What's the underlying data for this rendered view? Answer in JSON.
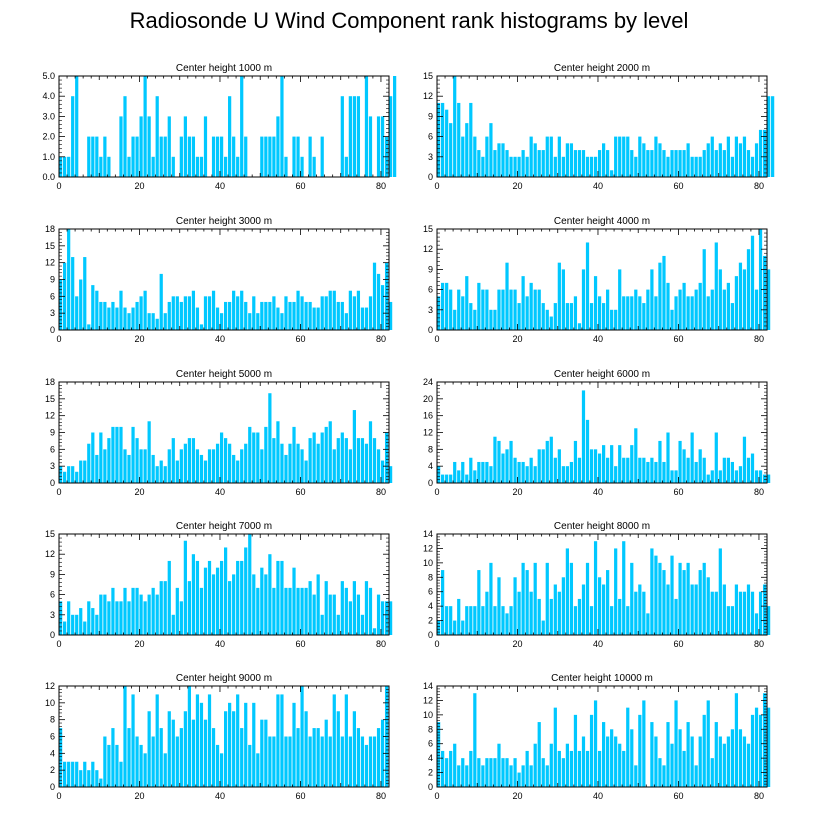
{
  "title": "Radiosonde U Wind Component rank histograms by level",
  "colors": {
    "bar": "#00c8ff",
    "axis": "#000000"
  },
  "chart_data": [
    {
      "type": "bar",
      "title": "Center height 1000 m",
      "xlim": [
        0,
        82
      ],
      "ylim": [
        0,
        5
      ],
      "xticks": [
        0,
        20,
        40,
        60,
        80
      ],
      "xtick_labels": [
        "0",
        "20",
        "40",
        "60",
        "80"
      ],
      "yticks": [
        0,
        1,
        2,
        3,
        4,
        5
      ],
      "ytick_labels": [
        "0.0",
        "1.0",
        "2.0",
        "3.0",
        "4.0",
        "5.0"
      ],
      "values": [
        1,
        1,
        1,
        4,
        5,
        0,
        0,
        2,
        2,
        2,
        1,
        2,
        1,
        0,
        0,
        3,
        4,
        1,
        2,
        2,
        3,
        5,
        3,
        1,
        4,
        2,
        2,
        3,
        1,
        0,
        2,
        3,
        2,
        2,
        1,
        1,
        3,
        0,
        2,
        2,
        2,
        1,
        4,
        2,
        1,
        5,
        2,
        0,
        0,
        0,
        2,
        2,
        2,
        2,
        3,
        5,
        1,
        0,
        2,
        2,
        1,
        0,
        2,
        1,
        0,
        2,
        0,
        0,
        0,
        0,
        4,
        1,
        4,
        4,
        4,
        0,
        5,
        3,
        0,
        3,
        3,
        2,
        4,
        5
      ]
    },
    {
      "type": "bar",
      "title": "Center height 2000 m",
      "xlim": [
        0,
        82
      ],
      "ylim": [
        0,
        15
      ],
      "xticks": [
        0,
        20,
        40,
        60,
        80
      ],
      "xtick_labels": [
        "0",
        "20",
        "40",
        "60",
        "80"
      ],
      "yticks": [
        0,
        3,
        6,
        9,
        12,
        15
      ],
      "ytick_labels": [
        "0",
        "3",
        "6",
        "9",
        "12",
        "15"
      ],
      "values": [
        11,
        11,
        10,
        8,
        15,
        11,
        6,
        8,
        11,
        6,
        4,
        3,
        6,
        8,
        4,
        5,
        5,
        4,
        3,
        3,
        3,
        4,
        3,
        6,
        5,
        4,
        4,
        6,
        6,
        3,
        6,
        3,
        5,
        5,
        4,
        4,
        4,
        3,
        3,
        3,
        4,
        5,
        4,
        1,
        6,
        6,
        6,
        6,
        4,
        3,
        6,
        5,
        4,
        4,
        6,
        5,
        4,
        3,
        4,
        4,
        4,
        4,
        5,
        3,
        3,
        3,
        4,
        5,
        6,
        4,
        5,
        4,
        6,
        3,
        6,
        5,
        6,
        4,
        3,
        5,
        7,
        7,
        12,
        12
      ]
    },
    {
      "type": "bar",
      "title": "Center height 3000 m",
      "xlim": [
        0,
        82
      ],
      "ylim": [
        0,
        18
      ],
      "xticks": [
        0,
        20,
        40,
        60,
        80
      ],
      "xtick_labels": [
        "0",
        "20",
        "40",
        "60",
        "80"
      ],
      "yticks": [
        0,
        3,
        6,
        9,
        12,
        15,
        18
      ],
      "ytick_labels": [
        "0",
        "3",
        "6",
        "9",
        "12",
        "15",
        "18"
      ],
      "values": [
        9,
        12,
        18,
        13,
        6,
        9,
        13,
        1,
        8,
        7,
        5,
        5,
        4,
        5,
        4,
        7,
        4,
        3,
        4,
        5,
        6,
        7,
        3,
        3,
        2,
        10,
        3,
        5,
        6,
        6,
        5,
        6,
        6,
        7,
        4,
        1,
        6,
        6,
        7,
        4,
        3,
        5,
        5,
        7,
        6,
        7,
        5,
        3,
        6,
        3,
        5,
        5,
        5,
        6,
        4,
        3,
        6,
        5,
        5,
        7,
        6,
        5,
        5,
        4,
        4,
        6,
        6,
        7,
        7,
        5,
        5,
        3,
        7,
        6,
        7,
        4,
        4,
        6,
        12,
        10,
        8,
        12,
        5
      ]
    },
    {
      "type": "bar",
      "title": "Center height 4000 m",
      "xlim": [
        0,
        82
      ],
      "ylim": [
        0,
        15
      ],
      "xticks": [
        0,
        20,
        40,
        60,
        80
      ],
      "xtick_labels": [
        "0",
        "20",
        "40",
        "60",
        "80"
      ],
      "yticks": [
        0,
        3,
        6,
        9,
        12,
        15
      ],
      "ytick_labels": [
        "0",
        "3",
        "6",
        "9",
        "12",
        "15"
      ],
      "values": [
        5,
        7,
        7,
        6,
        3,
        6,
        5,
        8,
        4,
        3,
        7,
        6,
        6,
        3,
        3,
        6,
        6,
        10,
        6,
        6,
        4,
        8,
        5,
        7,
        6,
        6,
        4,
        3,
        2,
        4,
        10,
        9,
        4,
        4,
        5,
        1,
        9,
        13,
        4,
        8,
        5,
        4,
        6,
        3,
        3,
        9,
        5,
        5,
        5,
        6,
        5,
        4,
        6,
        9,
        5,
        10,
        11,
        7,
        3,
        5,
        6,
        7,
        5,
        5,
        6,
        7,
        12,
        5,
        6,
        13,
        9,
        6,
        7,
        4,
        8,
        10,
        9,
        12,
        14,
        6,
        15,
        11,
        9
      ]
    },
    {
      "type": "bar",
      "title": "Center height 5000 m",
      "xlim": [
        0,
        82
      ],
      "ylim": [
        0,
        18
      ],
      "xticks": [
        0,
        20,
        40,
        60,
        80
      ],
      "xtick_labels": [
        "0",
        "20",
        "40",
        "60",
        "80"
      ],
      "yticks": [
        0,
        3,
        6,
        9,
        12,
        15,
        18
      ],
      "ytick_labels": [
        "0",
        "3",
        "6",
        "9",
        "12",
        "15",
        "18"
      ],
      "values": [
        3,
        2,
        3,
        3,
        2,
        4,
        4,
        7,
        9,
        5,
        9,
        6,
        8,
        10,
        10,
        10,
        6,
        5,
        10,
        8,
        6,
        6,
        11,
        5,
        3,
        4,
        3,
        6,
        8,
        4,
        6,
        7,
        8,
        8,
        6,
        5,
        4,
        6,
        6,
        7,
        9,
        8,
        7,
        5,
        4,
        6,
        7,
        10,
        9,
        9,
        6,
        10,
        16,
        8,
        11,
        7,
        5,
        7,
        10,
        7,
        6,
        4,
        8,
        9,
        7,
        9,
        10,
        11,
        6,
        8,
        9,
        8,
        6,
        13,
        8,
        8,
        7,
        11,
        8,
        6,
        4,
        9,
        3
      ]
    },
    {
      "type": "bar",
      "title": "Center height 6000 m",
      "xlim": [
        0,
        82
      ],
      "ylim": [
        0,
        24
      ],
      "xticks": [
        0,
        20,
        40,
        60,
        80
      ],
      "xtick_labels": [
        "0",
        "20",
        "40",
        "60",
        "80"
      ],
      "yticks": [
        0,
        4,
        8,
        12,
        16,
        20,
        24
      ],
      "ytick_labels": [
        "0",
        "4",
        "8",
        "12",
        "16",
        "20",
        "24"
      ],
      "values": [
        4,
        2,
        2,
        2,
        5,
        3,
        5,
        2,
        6,
        3,
        5,
        5,
        5,
        4,
        11,
        10,
        7,
        8,
        10,
        6,
        5,
        5,
        4,
        6,
        4,
        8,
        8,
        10,
        11,
        6,
        8,
        4,
        4,
        5,
        10,
        6,
        22,
        15,
        8,
        8,
        7,
        9,
        6,
        9,
        4,
        9,
        6,
        6,
        9,
        13,
        6,
        6,
        5,
        6,
        5,
        10,
        5,
        12,
        3,
        3,
        10,
        8,
        6,
        12,
        5,
        8,
        6,
        2,
        3,
        12,
        3,
        6,
        6,
        5,
        3,
        4,
        11,
        6,
        7,
        3,
        3,
        2,
        2
      ]
    },
    {
      "type": "bar",
      "title": "Center height 7000 m",
      "xlim": [
        0,
        82
      ],
      "ylim": [
        0,
        15
      ],
      "xticks": [
        0,
        20,
        40,
        60,
        80
      ],
      "xtick_labels": [
        "0",
        "20",
        "40",
        "60",
        "80"
      ],
      "yticks": [
        0,
        3,
        6,
        9,
        12,
        15
      ],
      "ytick_labels": [
        "0",
        "3",
        "6",
        "9",
        "12",
        "15"
      ],
      "values": [
        5,
        2,
        5,
        3,
        3,
        4,
        2,
        5,
        4,
        3,
        6,
        6,
        5,
        7,
        5,
        5,
        7,
        5,
        7,
        7,
        6,
        5,
        6,
        7,
        6,
        8,
        8,
        11,
        3,
        7,
        5,
        14,
        8,
        12,
        11,
        7,
        10,
        11,
        9,
        10,
        11,
        13,
        8,
        9,
        11,
        11,
        13,
        15,
        9,
        7,
        10,
        9,
        12,
        7,
        11,
        11,
        7,
        7,
        10,
        7,
        7,
        7,
        8,
        6,
        9,
        3,
        8,
        6,
        6,
        3,
        8,
        7,
        5,
        8,
        6,
        3,
        8,
        7,
        1,
        6,
        5,
        5,
        5
      ]
    },
    {
      "type": "bar",
      "title": "Center height 8000 m",
      "xlim": [
        0,
        82
      ],
      "ylim": [
        0,
        14
      ],
      "xticks": [
        0,
        20,
        40,
        60,
        80
      ],
      "xtick_labels": [
        "0",
        "20",
        "40",
        "60",
        "80"
      ],
      "yticks": [
        0,
        2,
        4,
        6,
        8,
        10,
        12,
        14
      ],
      "ytick_labels": [
        "0",
        "2",
        "4",
        "6",
        "8",
        "10",
        "12",
        "14"
      ],
      "values": [
        2,
        9,
        4,
        4,
        2,
        5,
        2,
        4,
        4,
        4,
        9,
        4,
        6,
        10,
        4,
        8,
        4,
        3,
        4,
        8,
        6,
        10,
        9,
        6,
        10,
        5,
        2,
        10,
        5,
        7,
        6,
        8,
        12,
        10,
        4,
        5,
        7,
        10,
        4,
        13,
        8,
        7,
        9,
        4,
        12,
        5,
        13,
        4,
        10,
        6,
        7,
        6,
        3,
        12,
        11,
        10,
        9,
        7,
        11,
        5,
        10,
        9,
        10,
        7,
        7,
        9,
        10,
        8,
        6,
        6,
        12,
        7,
        4,
        4,
        7,
        6,
        6,
        7,
        6,
        3,
        6,
        7,
        4
      ]
    },
    {
      "type": "bar",
      "title": "Center height 9000 m",
      "xlim": [
        0,
        82
      ],
      "ylim": [
        0,
        12
      ],
      "xticks": [
        0,
        20,
        40,
        60,
        80
      ],
      "xtick_labels": [
        "0",
        "20",
        "40",
        "60",
        "80"
      ],
      "yticks": [
        0,
        2,
        4,
        6,
        8,
        10,
        12
      ],
      "ytick_labels": [
        "0",
        "2",
        "4",
        "6",
        "8",
        "10",
        "12"
      ],
      "values": [
        7,
        3,
        3,
        3,
        3,
        2,
        3,
        2,
        3,
        2,
        1,
        6,
        5,
        7,
        5,
        3,
        12,
        7,
        11,
        6,
        5,
        4,
        9,
        6,
        11,
        7,
        4,
        9,
        8,
        6,
        7,
        9,
        12,
        8,
        11,
        10,
        8,
        11,
        7,
        5,
        4,
        9,
        10,
        9,
        11,
        7,
        10,
        5,
        10,
        4,
        8,
        8,
        6,
        6,
        11,
        11,
        6,
        6,
        10,
        7,
        12,
        9,
        6,
        7,
        7,
        6,
        8,
        6,
        11,
        9,
        6,
        11,
        6,
        9,
        7,
        6,
        5,
        6,
        6,
        7,
        8,
        12
      ]
    },
    {
      "type": "bar",
      "title": "Center height 10000 m",
      "xlim": [
        0,
        82
      ],
      "ylim": [
        0,
        14
      ],
      "xticks": [
        0,
        20,
        40,
        60,
        80
      ],
      "xtick_labels": [
        "0",
        "20",
        "40",
        "60",
        "80"
      ],
      "yticks": [
        0,
        2,
        4,
        6,
        8,
        10,
        12,
        14
      ],
      "ytick_labels": [
        "0",
        "2",
        "4",
        "6",
        "8",
        "10",
        "12",
        "14"
      ],
      "values": [
        9,
        5,
        4,
        5,
        6,
        3,
        4,
        3,
        5,
        13,
        4,
        3,
        4,
        4,
        4,
        6,
        4,
        4,
        3,
        4,
        2,
        3,
        5,
        3,
        6,
        9,
        4,
        3,
        6,
        11,
        5,
        4,
        6,
        5,
        10,
        5,
        7,
        5,
        10,
        12,
        5,
        9,
        7,
        8,
        7,
        6,
        5,
        11,
        8,
        3,
        10,
        12,
        0,
        9,
        7,
        4,
        3,
        9,
        6,
        12,
        8,
        5,
        9,
        7,
        3,
        7,
        10,
        12,
        4,
        9,
        7,
        6,
        7,
        8,
        13,
        8,
        7,
        6,
        10,
        11,
        10,
        13,
        11
      ]
    }
  ]
}
